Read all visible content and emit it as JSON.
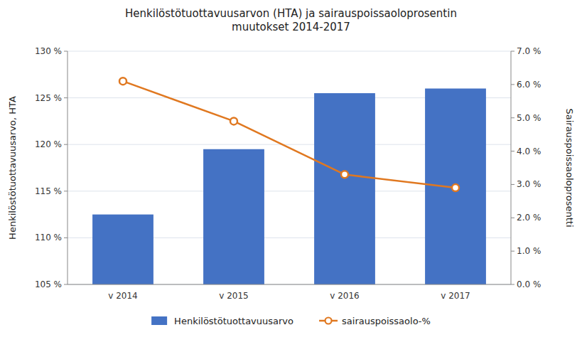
{
  "chart_data": {
    "type": "bar",
    "title": "Henkilöstötuottavuusarvon (HTA) ja sairauspoissaoloprosentin\nmuutokset 2014-2017",
    "categories": [
      "v 2014",
      "v 2015",
      "v 2016",
      "v 2017"
    ],
    "series": [
      {
        "name": "Henkilöstötuottavuusarvo",
        "type": "bar",
        "color": "#4472C4",
        "values": [
          112.5,
          119.5,
          125.5,
          126.0
        ]
      },
      {
        "name": "sairauspoissaolo-%",
        "type": "line",
        "color": "#E07820",
        "marker": "circle",
        "axis": "y2",
        "values": [
          6.1,
          4.9,
          3.3,
          2.9
        ]
      }
    ],
    "ylabel": "Henkilöstötuottavuusarvo, HTA",
    "y2label": "Sairauspoissaoloprosentti",
    "ylim": [
      105,
      130
    ],
    "yticks": [
      {
        "value": 105,
        "label": "105 %"
      },
      {
        "value": 110,
        "label": "110 %"
      },
      {
        "value": 115,
        "label": "115 %"
      },
      {
        "value": 120,
        "label": "120 %"
      },
      {
        "value": 125,
        "label": "125 %"
      },
      {
        "value": 130,
        "label": "130 %"
      }
    ],
    "y2lim": [
      0.0,
      7.0
    ],
    "y2ticks": [
      {
        "value": 0.0,
        "label": "0.0 %"
      },
      {
        "value": 1.0,
        "label": "1.0 %"
      },
      {
        "value": 2.0,
        "label": "2.0 %"
      },
      {
        "value": 3.0,
        "label": "3.0 %"
      },
      {
        "value": 4.0,
        "label": "4.0 %"
      },
      {
        "value": 5.0,
        "label": "5.0 %"
      },
      {
        "value": 6.0,
        "label": "6.0 %"
      },
      {
        "value": 7.0,
        "label": "7.0 %"
      }
    ],
    "grid": true,
    "legend": "bottom"
  }
}
